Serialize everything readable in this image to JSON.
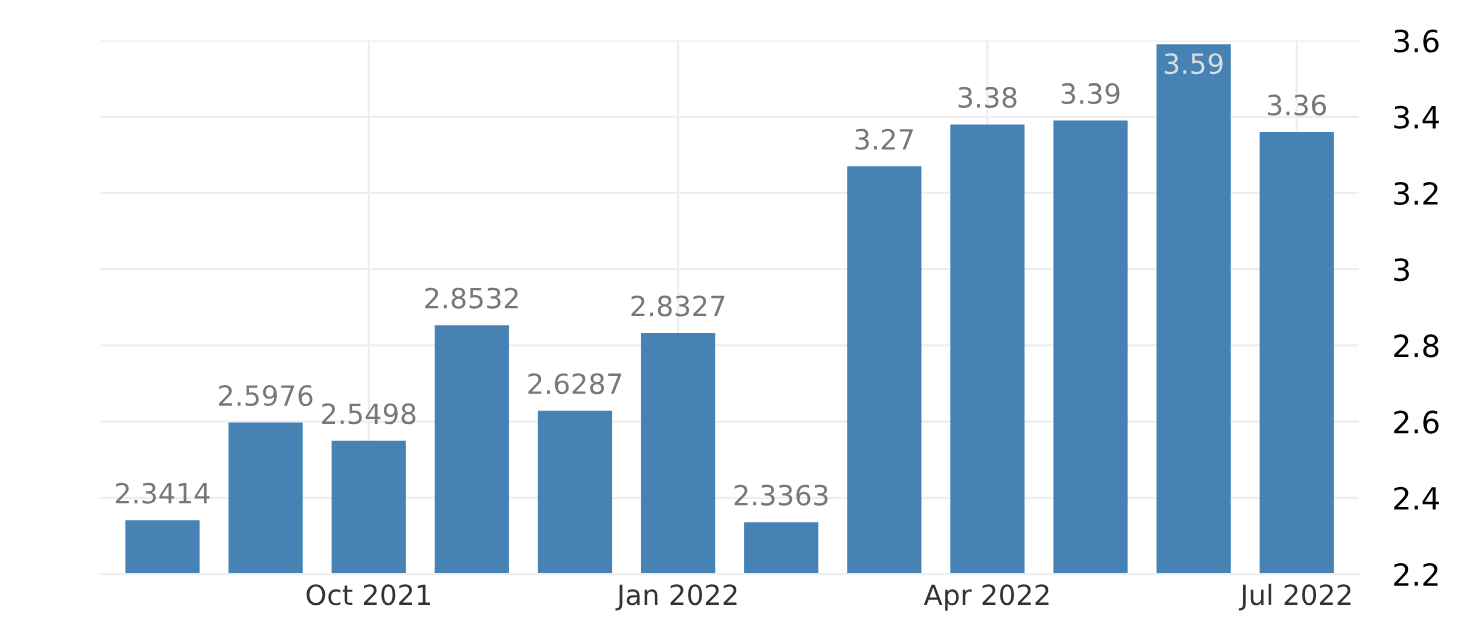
{
  "chart_data": {
    "type": "bar",
    "categories": [
      null,
      null,
      "Oct 2021",
      null,
      null,
      "Jan 2022",
      null,
      null,
      "Apr 2022",
      null,
      null,
      "Jul 2022"
    ],
    "values": [
      2.3414,
      2.5976,
      2.5498,
      2.8532,
      2.6287,
      2.8327,
      2.3363,
      3.27,
      3.38,
      3.39,
      3.59,
      3.36
    ],
    "color": "#4682b4",
    "ylim": [
      2.2,
      3.6
    ],
    "yticks": [
      2.2,
      2.4,
      2.6,
      2.8,
      {
        "value": 3,
        "label": "3"
      },
      3.2,
      3.4,
      3.6
    ],
    "grid": true,
    "data_labels": true,
    "legend": false
  }
}
